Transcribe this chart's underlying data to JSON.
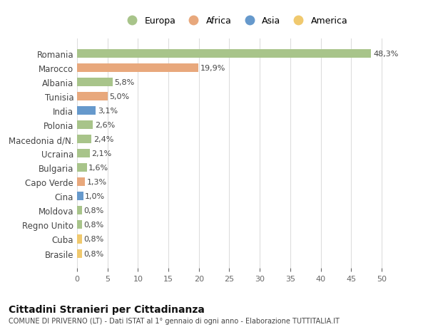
{
  "countries": [
    "Romania",
    "Marocco",
    "Albania",
    "Tunisia",
    "India",
    "Polonia",
    "Macedonia d/N.",
    "Ucraina",
    "Bulgaria",
    "Capo Verde",
    "Cina",
    "Moldova",
    "Regno Unito",
    "Cuba",
    "Brasile"
  ],
  "values": [
    48.3,
    19.9,
    5.8,
    5.0,
    3.1,
    2.6,
    2.4,
    2.1,
    1.6,
    1.3,
    1.0,
    0.8,
    0.8,
    0.8,
    0.8
  ],
  "labels": [
    "48,3%",
    "19,9%",
    "5,8%",
    "5,0%",
    "3,1%",
    "2,6%",
    "2,4%",
    "2,1%",
    "1,6%",
    "1,3%",
    "1,0%",
    "0,8%",
    "0,8%",
    "0,8%",
    "0,8%"
  ],
  "continents": [
    "Europa",
    "Africa",
    "Europa",
    "Africa",
    "Asia",
    "Europa",
    "Europa",
    "Europa",
    "Europa",
    "Africa",
    "Asia",
    "Europa",
    "Europa",
    "America",
    "America"
  ],
  "continent_colors": {
    "Europa": "#a8c48a",
    "Africa": "#e8a87c",
    "Asia": "#6699cc",
    "America": "#f0c96e"
  },
  "legend_order": [
    "Europa",
    "Africa",
    "Asia",
    "America"
  ],
  "title": "Cittadini Stranieri per Cittadinanza",
  "subtitle": "COMUNE DI PRIVERNO (LT) - Dati ISTAT al 1° gennaio di ogni anno - Elaborazione TUTTITALIA.IT",
  "xlim": [
    0,
    52
  ],
  "xticks": [
    0,
    5,
    10,
    15,
    20,
    25,
    30,
    35,
    40,
    45,
    50
  ],
  "bg_color": "#ffffff",
  "grid_color": "#dddddd",
  "bar_height": 0.6
}
